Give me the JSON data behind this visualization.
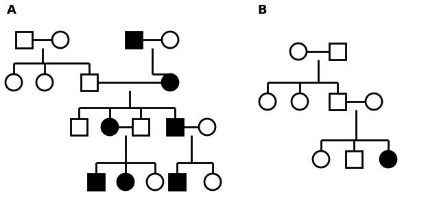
{
  "background": "#ffffff",
  "lw": 2.0,
  "r": 12,
  "A_label": "A",
  "B_label": "B",
  "figw": 6.4,
  "figh": 3.06,
  "dpi": 100
}
